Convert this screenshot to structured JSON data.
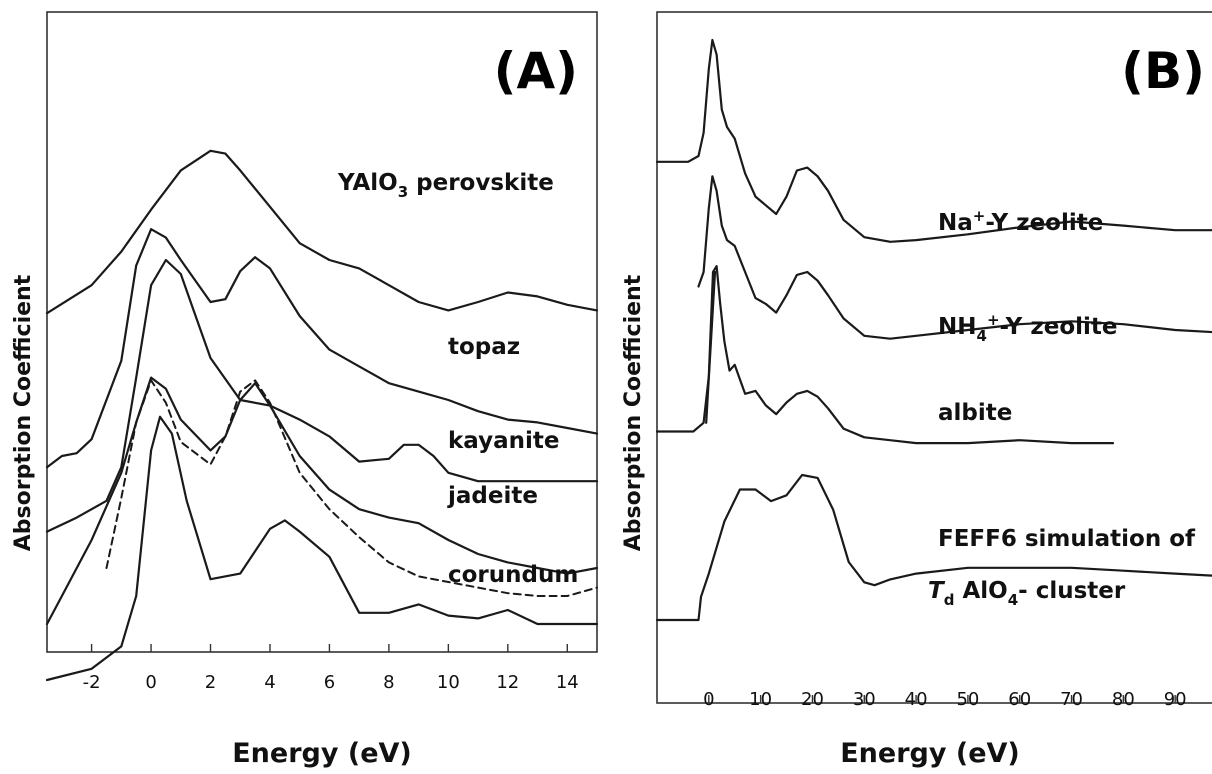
{
  "chart_data": [
    {
      "type": "line",
      "panel_label": "(A)",
      "xlabel": "Energy (eV)",
      "ylabel": "Absorption Coefficient",
      "xlim": [
        -3.5,
        15
      ],
      "xticks": [
        -2,
        0,
        2,
        4,
        6,
        8,
        10,
        12,
        14
      ],
      "tick_labels": [
        "-2",
        "0",
        "2",
        "4",
        "6",
        "8",
        "10",
        "12",
        "14"
      ],
      "grid": false,
      "series": [
        {
          "name": "YAlO3 perovskite",
          "label_main": "YAlO",
          "label_sub": "3",
          "label_tail": " perovskite",
          "style": "solid",
          "x": [
            -3.5,
            -2,
            -1,
            0,
            1,
            2,
            2.5,
            3,
            4,
            5,
            6,
            7,
            8,
            9,
            10,
            11,
            12,
            13,
            14,
            15
          ],
          "y": [
            0.605,
            0.655,
            0.715,
            0.79,
            0.86,
            0.895,
            0.89,
            0.86,
            0.795,
            0.73,
            0.7,
            0.685,
            0.655,
            0.625,
            0.61,
            0.625,
            0.642,
            0.635,
            0.62,
            0.61
          ]
        },
        {
          "name": "topaz",
          "label_main": "topaz",
          "style": "solid",
          "x": [
            -3.5,
            -3,
            -2.5,
            -2,
            -1,
            -0.5,
            0,
            0.5,
            1,
            2,
            2.5,
            3,
            3.5,
            4,
            5,
            6,
            7,
            8,
            9,
            10,
            11,
            12,
            13,
            14,
            15
          ],
          "y": [
            0.33,
            0.35,
            0.355,
            0.38,
            0.52,
            0.69,
            0.755,
            0.74,
            0.7,
            0.625,
            0.63,
            0.68,
            0.705,
            0.685,
            0.6,
            0.54,
            0.51,
            0.48,
            0.465,
            0.45,
            0.43,
            0.415,
            0.41,
            0.4,
            0.39
          ]
        },
        {
          "name": "kayanite",
          "label_main": "kayanite",
          "style": "solid",
          "x": [
            -3.5,
            -2.5,
            -1.5,
            -1,
            -0.5,
            0,
            0.5,
            1,
            1.5,
            2,
            3,
            4,
            5,
            6,
            7,
            8,
            8.5,
            9,
            9.5,
            10,
            11,
            12,
            13,
            14,
            15
          ],
          "y": [
            0.215,
            0.24,
            0.27,
            0.33,
            0.49,
            0.655,
            0.7,
            0.675,
            0.6,
            0.525,
            0.45,
            0.44,
            0.415,
            0.385,
            0.34,
            0.345,
            0.37,
            0.37,
            0.35,
            0.32,
            0.305,
            0.305,
            0.305,
            0.305,
            0.305
          ]
        },
        {
          "name": "jadeite",
          "label_main": "jadeite",
          "style": "solid",
          "x": [
            -3.5,
            -3,
            -2,
            -1,
            -0.5,
            0,
            0.5,
            1,
            2,
            2.5,
            3,
            3.5,
            4,
            5,
            6,
            7,
            8,
            9,
            10,
            11,
            12,
            13,
            14,
            15
          ],
          "y": [
            0.05,
            0.1,
            0.2,
            0.32,
            0.41,
            0.49,
            0.47,
            0.415,
            0.36,
            0.385,
            0.45,
            0.48,
            0.44,
            0.35,
            0.29,
            0.255,
            0.24,
            0.23,
            0.2,
            0.175,
            0.16,
            0.15,
            0.14,
            0.15
          ]
        },
        {
          "name": "jadeite (dashed)",
          "style": "dashed",
          "x": [
            -1.5,
            -1,
            -0.5,
            0,
            0.5,
            1,
            2,
            2.5,
            3,
            3.5,
            4,
            5,
            6,
            7,
            8,
            9,
            10,
            11,
            12,
            13,
            14,
            15
          ],
          "y": [
            0.15,
            0.275,
            0.41,
            0.485,
            0.445,
            0.375,
            0.335,
            0.385,
            0.465,
            0.485,
            0.445,
            0.32,
            0.255,
            0.205,
            0.16,
            0.135,
            0.125,
            0.115,
            0.105,
            0.1,
            0.1,
            0.115
          ]
        },
        {
          "name": "corundum",
          "label_main": "corundum",
          "style": "solid",
          "x": [
            -3.5,
            -2,
            -1,
            -0.5,
            0,
            0.3,
            0.7,
            1.2,
            2,
            3,
            4,
            4.5,
            5,
            6,
            7,
            8,
            9,
            10,
            11,
            12,
            13,
            14,
            15
          ],
          "y": [
            -0.05,
            -0.03,
            0.01,
            0.1,
            0.36,
            0.42,
            0.39,
            0.27,
            0.13,
            0.14,
            0.22,
            0.235,
            0.215,
            0.17,
            0.07,
            0.07,
            0.085,
            0.065,
            0.06,
            0.075,
            0.05,
            0.05,
            0.05
          ]
        }
      ]
    },
    {
      "type": "line",
      "panel_label": "(B)",
      "xlabel": "Energy (eV)",
      "ylabel": "Absorption Coefficient",
      "xlim": [
        -10,
        100
      ],
      "xticks": [
        0,
        10,
        20,
        30,
        40,
        50,
        60,
        70,
        80,
        90
      ],
      "tick_labels": [
        "0",
        "10",
        "20",
        "30",
        "40",
        "50",
        "60",
        "70",
        "80",
        "90"
      ],
      "grid": false,
      "series": [
        {
          "name": "Na+-Y zeolite",
          "label_main": "Na",
          "label_sup": "+",
          "label_tail": "-Y zeolite",
          "style": "solid",
          "x": [
            -10,
            -4,
            -2,
            -1,
            0,
            0.7,
            1.5,
            2.5,
            3.5,
            5,
            7,
            9,
            11,
            13,
            15,
            17,
            19,
            21,
            23,
            26,
            30,
            35,
            40,
            50,
            60,
            70,
            80,
            90,
            100
          ],
          "y": [
            0.79,
            0.79,
            0.8,
            0.84,
            0.95,
            1.0,
            0.975,
            0.88,
            0.85,
            0.83,
            0.77,
            0.73,
            0.715,
            0.7,
            0.73,
            0.775,
            0.78,
            0.765,
            0.74,
            0.69,
            0.66,
            0.652,
            0.655,
            0.665,
            0.677,
            0.687,
            0.68,
            0.672,
            0.672
          ]
        },
        {
          "name": "NH4+-Y zeolite",
          "label_main": "NH",
          "label_sub": "4",
          "label_sup": "+",
          "label_tail": "-Y zeolite",
          "style": "solid",
          "x": [
            -2,
            -1,
            0,
            0.7,
            1.5,
            2.5,
            3.5,
            5,
            7,
            9,
            11,
            13,
            15,
            17,
            19,
            21,
            23,
            26,
            30,
            35,
            40,
            50,
            60,
            70,
            80,
            90,
            100
          ],
          "y": [
            0.575,
            0.6,
            0.71,
            0.765,
            0.74,
            0.68,
            0.655,
            0.645,
            0.6,
            0.555,
            0.545,
            0.53,
            0.56,
            0.595,
            0.6,
            0.585,
            0.56,
            0.52,
            0.49,
            0.485,
            0.49,
            0.5,
            0.51,
            0.515,
            0.51,
            0.5,
            0.495
          ]
        },
        {
          "name": "albite",
          "label_main": "albite",
          "style": "solid",
          "x": [
            -10,
            -3,
            -1,
            0,
            0.8,
            1.5,
            2.2,
            3,
            4,
            5,
            7,
            9,
            11,
            13,
            15,
            17,
            19,
            21,
            23,
            26,
            30,
            40,
            50,
            60,
            70,
            78
          ],
          "y": [
            0.325,
            0.325,
            0.34,
            0.42,
            0.6,
            0.61,
            0.545,
            0.48,
            0.43,
            0.44,
            0.39,
            0.395,
            0.37,
            0.355,
            0.375,
            0.39,
            0.395,
            0.385,
            0.365,
            0.33,
            0.315,
            0.305,
            0.305,
            0.31,
            0.305,
            0.305
          ]
        },
        {
          "name": "FEFF6 simulation of Td AlO4- cluster",
          "label_main": "FEFF6 simulation of",
          "label2_it": "T",
          "label2_sub": "d",
          "label2_main": " AlO",
          "label2_sub2": "4",
          "label2_tail": "- cluster",
          "style": "solid",
          "x": [
            -10,
            -2,
            -1.5,
            0,
            3,
            6,
            9,
            12,
            15,
            18,
            21,
            24,
            27,
            30,
            32,
            35,
            40,
            50,
            60,
            70,
            80,
            90,
            100
          ],
          "y": [
            0.0,
            0.0,
            0.04,
            0.08,
            0.17,
            0.225,
            0.225,
            0.205,
            0.215,
            0.25,
            0.245,
            0.19,
            0.1,
            0.065,
            0.06,
            0.07,
            0.08,
            0.09,
            0.09,
            0.09,
            0.085,
            0.08,
            0.075
          ]
        },
        {
          "name": "albite (edge rise)",
          "style": "solid",
          "x": [
            -0.5,
            1.2
          ],
          "y": [
            0.34,
            0.6
          ]
        }
      ]
    }
  ]
}
